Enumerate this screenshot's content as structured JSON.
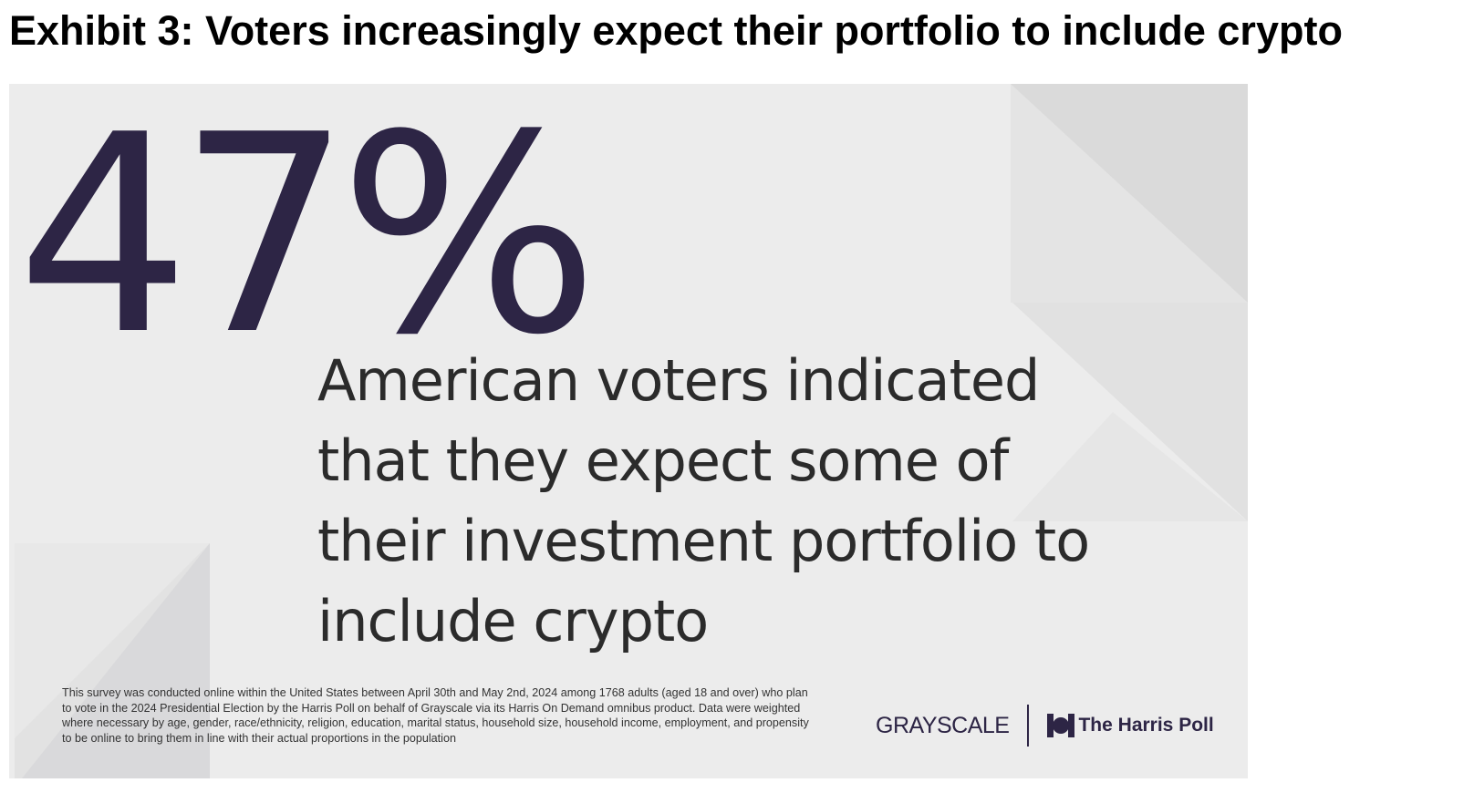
{
  "exhibit_title": "Exhibit 3: Voters increasingly expect their portfolio to include crypto",
  "stat": {
    "value": "47%",
    "statement": "American voters indicated that they expect some of their investment portfolio to include crypto"
  },
  "footnote": "This survey was conducted online within the United States between April 30th and May 2nd, 2024 among 1768 adults (aged 18 and over) who plan to vote in the 2024 Presidential Election by the Harris Poll on behalf of Grayscale via its Harris On Demand omnibus product. Data were weighted where necessary by age, gender, race/ethnicity, religion, education, marital status, household size, household income, employment, and propensity to be online to bring them in line with their actual proportions in the population",
  "logos": {
    "grayscale": "GRAYSCALE",
    "harris_poll": "The Harris Poll"
  },
  "colors": {
    "accent": "#2d2545",
    "card_background": "#ececec",
    "text": "#2b2b2b"
  },
  "icons": {
    "harris_mark": "harris-poll-logo-icon"
  }
}
